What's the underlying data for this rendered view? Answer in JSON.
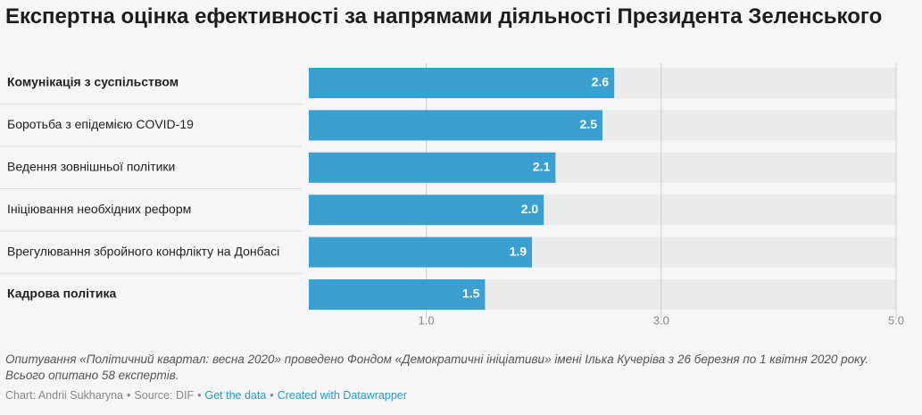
{
  "chart_data": {
    "type": "bar",
    "orientation": "horizontal",
    "title": "Експертна оцінка ефективності за напрямами діяльності Президента Зеленського",
    "categories": [
      "Комунікація з суспільством",
      "Боротьба з епідемією COVID-19",
      "Ведення зовнішньої політики",
      "Ініціювання необхідних реформ",
      "Врегулювання збройного конфлікту на Донбасі",
      "Кадрова політика"
    ],
    "bold": [
      true,
      false,
      false,
      false,
      false,
      true
    ],
    "values": [
      2.6,
      2.5,
      2.1,
      2.0,
      1.9,
      1.5
    ],
    "value_labels": [
      "2.6",
      "2.5",
      "2.1",
      "2.0",
      "1.9",
      "1.5"
    ],
    "color": "#3aa0cf",
    "background_color": "#ebebec",
    "xlim": [
      0,
      5
    ],
    "xticks": [
      {
        "value": 1,
        "label": "1.0"
      },
      {
        "value": 3,
        "label": "3.0"
      },
      {
        "value": 5,
        "label": "5.0"
      }
    ],
    "grid": true,
    "note": "Опитування «Політичний квартал: весна 2020» проведено Фондом «Демократичні ініціативи» імені Ілька Кучеріва з 26 березня по 1 квітня 2020 року. Всього опитано 58 експертів.",
    "footer": {
      "separator": "•",
      "byline": "Chart: Andrii Sukharyna",
      "source": "Source: DIF",
      "get_data": "Get the data",
      "credit": "Created with Datawrapper"
    }
  }
}
